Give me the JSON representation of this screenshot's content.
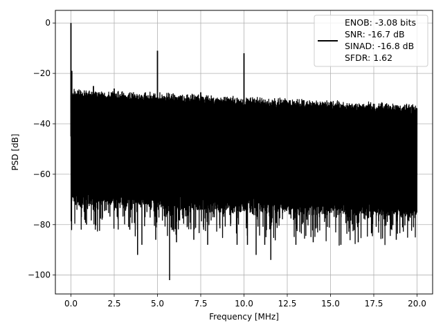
{
  "chart_data": {
    "type": "line",
    "title": "",
    "xlabel": "Frequency [MHz]",
    "ylabel": "PSD [dB]",
    "xlim": [
      -0.9,
      20.9
    ],
    "ylim": [
      -107.5,
      5
    ],
    "grid": true,
    "x_ticks": [
      0.0,
      2.5,
      5.0,
      7.5,
      10.0,
      12.5,
      15.0,
      17.5,
      20.0
    ],
    "x_tick_labels": [
      "0.0",
      "2.5",
      "5.0",
      "7.5",
      "10.0",
      "12.5",
      "15.0",
      "17.5",
      "20.0"
    ],
    "y_ticks": [
      0,
      -20,
      -40,
      -60,
      -80,
      -100
    ],
    "y_tick_labels": [
      "0",
      "−20",
      "−40",
      "−60",
      "−80",
      "−100"
    ],
    "legend": {
      "placement": "top-right",
      "entries": [
        {
          "lines": [
            "ENOB: -3.08 bits",
            "SNR: -16.7 dB",
            "SINAD: -16.8 dB",
            "SFDR: 1.62"
          ],
          "color": "#000000"
        }
      ]
    },
    "series": [
      {
        "color": "#000000",
        "x_range": [
          0.0,
          20.0
        ],
        "noise_band": {
          "upper_start": -27,
          "upper_end": -33,
          "lower_start": -65,
          "lower_end": -70,
          "deep_dip_floor": -80
        },
        "peaks": [
          {
            "x": 0.0,
            "y": 0
          },
          {
            "x": 0.05,
            "y": -19
          },
          {
            "x": 1.3,
            "y": -25
          },
          {
            "x": 2.5,
            "y": -26
          },
          {
            "x": 5.0,
            "y": -11
          },
          {
            "x": 7.5,
            "y": -27.5
          },
          {
            "x": 10.0,
            "y": -12
          }
        ],
        "dips": [
          {
            "x": 0.9,
            "y": -80
          },
          {
            "x": 1.8,
            "y": -78
          },
          {
            "x": 3.4,
            "y": -82
          },
          {
            "x": 3.85,
            "y": -92
          },
          {
            "x": 4.1,
            "y": -88
          },
          {
            "x": 4.9,
            "y": -86
          },
          {
            "x": 5.7,
            "y": -102
          },
          {
            "x": 6.1,
            "y": -87
          },
          {
            "x": 7.1,
            "y": -86
          },
          {
            "x": 7.9,
            "y": -88
          },
          {
            "x": 9.6,
            "y": -88
          },
          {
            "x": 10.2,
            "y": -88
          },
          {
            "x": 10.7,
            "y": -92
          },
          {
            "x": 11.2,
            "y": -88
          },
          {
            "x": 11.55,
            "y": -94
          },
          {
            "x": 13.0,
            "y": -88
          },
          {
            "x": 14.0,
            "y": -87
          },
          {
            "x": 15.6,
            "y": -88
          },
          {
            "x": 16.6,
            "y": -87
          },
          {
            "x": 18.8,
            "y": -86
          }
        ]
      }
    ]
  }
}
